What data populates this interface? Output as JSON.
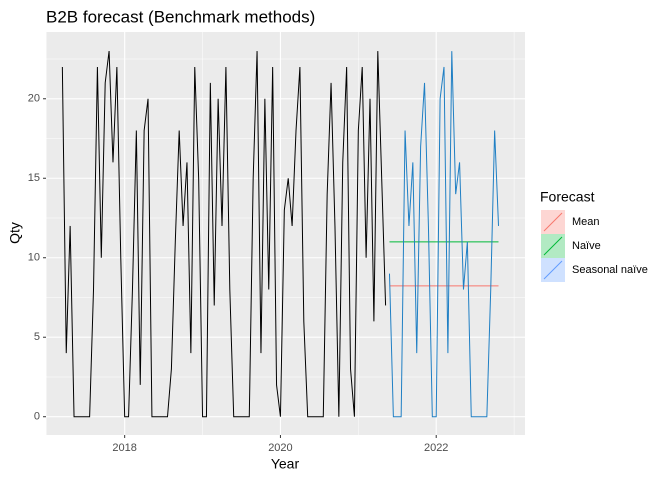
{
  "chart_data": {
    "type": "line",
    "title": "B2B forecast  (Benchmark methods)",
    "x_label": "Year",
    "y_label": "Qty",
    "legend_title": "Forecast",
    "history_color": "#000000",
    "x": [
      2017.2,
      2017.25,
      2017.3,
      2017.35,
      2017.4,
      2017.45,
      2017.5,
      2017.55,
      2017.6,
      2017.65,
      2017.7,
      2017.75,
      2017.8,
      2017.85,
      2017.9,
      2017.95,
      2018.0,
      2018.05,
      2018.1,
      2018.15,
      2018.2,
      2018.25,
      2018.3,
      2018.35,
      2018.4,
      2018.45,
      2018.5,
      2018.55,
      2018.6,
      2018.65,
      2018.7,
      2018.75,
      2018.8,
      2018.85,
      2018.9,
      2018.95,
      2019.0,
      2019.05,
      2019.1,
      2019.15,
      2019.2,
      2019.25,
      2019.3,
      2019.35,
      2019.4,
      2019.45,
      2019.5,
      2019.55,
      2019.6,
      2019.65,
      2019.7,
      2019.75,
      2019.8,
      2019.85,
      2019.9,
      2019.95,
      2020.0,
      2020.05,
      2020.1,
      2020.15,
      2020.2,
      2020.25,
      2020.3,
      2020.35,
      2020.4,
      2020.45,
      2020.5,
      2020.55,
      2020.6,
      2020.65,
      2020.7,
      2020.75,
      2020.8,
      2020.85,
      2020.9,
      2020.95,
      2021.0,
      2021.05,
      2021.1,
      2021.15,
      2021.2,
      2021.25,
      2021.3,
      2021.35
    ],
    "values": [
      22,
      4,
      12,
      0,
      0,
      0,
      0,
      0,
      8,
      22,
      10,
      21,
      23,
      16,
      22,
      10,
      0,
      0,
      8,
      18,
      2,
      18,
      20,
      0,
      0,
      0,
      0,
      0,
      3,
      11,
      18,
      12,
      16,
      4,
      22,
      15,
      0,
      0,
      21,
      7,
      20,
      12,
      22,
      8,
      0,
      0,
      0,
      0,
      0,
      15,
      23,
      4,
      20,
      8,
      22,
      2,
      0,
      13,
      15,
      12,
      18,
      22,
      6,
      0,
      0,
      0,
      0,
      0,
      14,
      21,
      12,
      0,
      16,
      22,
      3,
      0,
      18,
      22,
      10,
      20,
      6,
      23,
      15,
      7
    ],
    "series": [
      {
        "name": "Mean",
        "color": "#F8766D",
        "x": [
          2021.4,
          2022.8
        ],
        "values": [
          8.23,
          8.23
        ]
      },
      {
        "name": "Naïve",
        "color": "#00BA38",
        "x": [
          2021.4,
          2022.8
        ],
        "values": [
          11,
          11
        ]
      },
      {
        "name": "Seasonal naïve",
        "color": "#619CFF",
        "line_color": "#1F7FC4",
        "x": [
          2021.4,
          2021.45,
          2021.5,
          2021.55,
          2021.6,
          2021.65,
          2021.7,
          2021.75,
          2021.8,
          2021.85,
          2021.9,
          2021.95,
          2022.0,
          2022.05,
          2022.1,
          2022.15,
          2022.2,
          2022.25,
          2022.3,
          2022.35,
          2022.4,
          2022.45,
          2022.5,
          2022.55,
          2022.6,
          2022.65,
          2022.7,
          2022.75,
          2022.8
        ],
        "values": [
          9,
          0,
          0,
          0,
          18,
          12,
          16,
          4,
          17,
          21,
          12,
          0,
          0,
          20,
          22,
          4,
          23,
          14,
          16,
          8,
          11,
          0,
          0,
          0,
          0,
          0,
          8,
          18,
          12
        ]
      }
    ],
    "xlim": [
      2016.99,
      2023.14
    ],
    "ylim": [
      -1.15,
      24.2
    ],
    "xticks": [
      2018,
      2020,
      2022
    ],
    "yticks": [
      0,
      5,
      10,
      15,
      20
    ],
    "grid": true
  }
}
